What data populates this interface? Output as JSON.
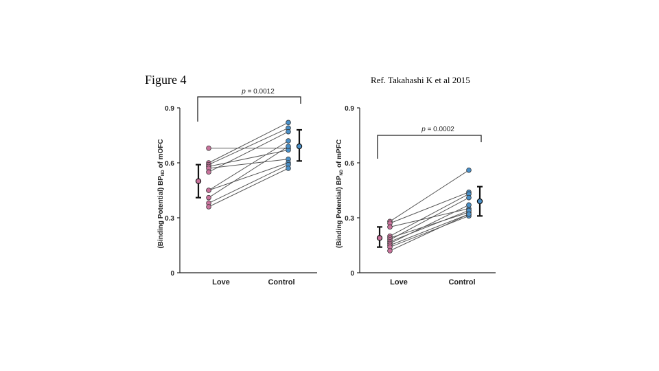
{
  "figure_title": "Figure 4",
  "reference": "Ref. Takahashi K et al 2015",
  "colors": {
    "love": "#c9739c",
    "control": "#4a90c8",
    "line": "#555555",
    "axis": "#222222",
    "mean": "#111111"
  },
  "chart_data": [
    {
      "type": "scatter",
      "subtype": "paired-dot-plot",
      "ylabel_main": "BP",
      "ylabel_sub": "ND",
      "ylabel_region": " of mOFC",
      "ylabel_paren": "(Binding Potential)",
      "categories": [
        "Love",
        "Control"
      ],
      "yticks": [
        "0",
        "0.3",
        "0.6",
        "0.9"
      ],
      "ylim": [
        0,
        0.9
      ],
      "p_label_prefix": "p",
      "p_value": "= 0.0012",
      "pairs": [
        [
          0.68,
          0.68
        ],
        [
          0.6,
          0.82
        ],
        [
          0.59,
          0.79
        ],
        [
          0.58,
          0.67
        ],
        [
          0.57,
          0.62
        ],
        [
          0.55,
          0.77
        ],
        [
          0.45,
          0.72
        ],
        [
          0.45,
          0.6
        ],
        [
          0.41,
          0.69
        ],
        [
          0.38,
          0.59
        ],
        [
          0.36,
          0.57
        ]
      ],
      "love_mean": 0.5,
      "love_err": [
        0.41,
        0.59
      ],
      "control_mean": 0.69,
      "control_err": [
        0.61,
        0.78
      ]
    },
    {
      "type": "scatter",
      "subtype": "paired-dot-plot",
      "ylabel_main": "BP",
      "ylabel_sub": "ND",
      "ylabel_region": " of mPFC",
      "ylabel_paren": "(Binding Potential)",
      "categories": [
        "Love",
        "Control"
      ],
      "yticks": [
        "0",
        "0.3",
        "0.6",
        "0.9"
      ],
      "ylim": [
        0,
        0.9
      ],
      "p_label_prefix": "p",
      "p_value": "= 0.0002",
      "pairs": [
        [
          0.28,
          0.56
        ],
        [
          0.27,
          0.44
        ],
        [
          0.25,
          0.35
        ],
        [
          0.2,
          0.43
        ],
        [
          0.19,
          0.33
        ],
        [
          0.18,
          0.41
        ],
        [
          0.17,
          0.34
        ],
        [
          0.16,
          0.37
        ],
        [
          0.15,
          0.32
        ],
        [
          0.14,
          0.31
        ],
        [
          0.12,
          0.32
        ]
      ],
      "love_mean": 0.19,
      "love_err": [
        0.14,
        0.25
      ],
      "control_mean": 0.39,
      "control_err": [
        0.31,
        0.47
      ]
    }
  ]
}
